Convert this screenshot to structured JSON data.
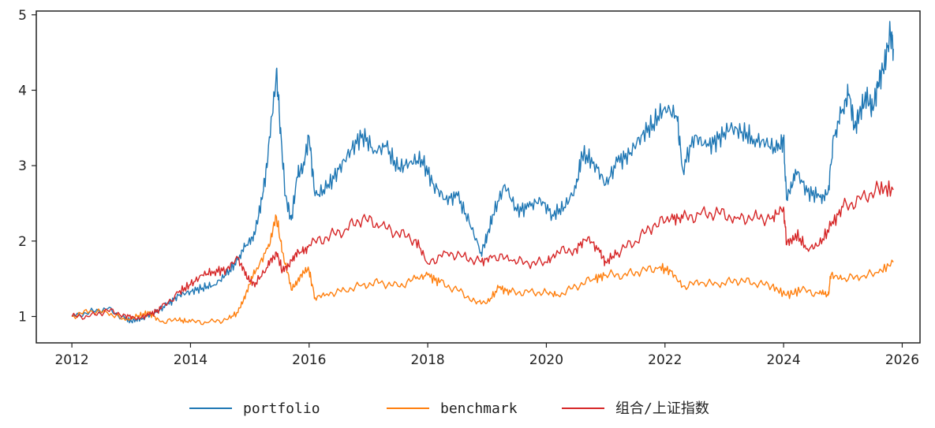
{
  "chart_data": {
    "type": "line",
    "title": "",
    "xlabel": "",
    "ylabel": "",
    "xlim": [
      2011.4,
      2026.3
    ],
    "ylim": [
      0.65,
      5.05
    ],
    "x_ticks": [
      "2012",
      "2014",
      "2016",
      "2018",
      "2020",
      "2022",
      "2024",
      "2026"
    ],
    "y_ticks": [
      "1",
      "2",
      "3",
      "4",
      "5"
    ],
    "grid": false,
    "legend_position": "bottom-center",
    "series": [
      {
        "name": "portfolio",
        "color": "#1f77b4",
        "points": [
          [
            2012.0,
            1.0
          ],
          [
            2012.3,
            1.06
          ],
          [
            2012.6,
            1.1
          ],
          [
            2012.9,
            0.97
          ],
          [
            2013.0,
            0.94
          ],
          [
            2013.2,
            0.98
          ],
          [
            2013.4,
            1.05
          ],
          [
            2013.6,
            1.15
          ],
          [
            2013.8,
            1.28
          ],
          [
            2014.0,
            1.33
          ],
          [
            2014.2,
            1.38
          ],
          [
            2014.4,
            1.42
          ],
          [
            2014.6,
            1.55
          ],
          [
            2014.8,
            1.75
          ],
          [
            2014.95,
            1.95
          ],
          [
            2015.1,
            2.15
          ],
          [
            2015.2,
            2.55
          ],
          [
            2015.3,
            3.05
          ],
          [
            2015.45,
            4.28
          ],
          [
            2015.5,
            3.65
          ],
          [
            2015.6,
            2.6
          ],
          [
            2015.7,
            2.28
          ],
          [
            2015.8,
            2.85
          ],
          [
            2015.9,
            3.0
          ],
          [
            2016.0,
            3.38
          ],
          [
            2016.1,
            2.6
          ],
          [
            2016.3,
            2.7
          ],
          [
            2016.5,
            2.95
          ],
          [
            2016.7,
            3.2
          ],
          [
            2016.9,
            3.42
          ],
          [
            2017.1,
            3.2
          ],
          [
            2017.3,
            3.25
          ],
          [
            2017.5,
            2.95
          ],
          [
            2017.7,
            3.05
          ],
          [
            2017.9,
            3.08
          ],
          [
            2018.1,
            2.75
          ],
          [
            2018.3,
            2.55
          ],
          [
            2018.5,
            2.6
          ],
          [
            2018.7,
            2.25
          ],
          [
            2018.9,
            1.85
          ],
          [
            2019.0,
            2.05
          ],
          [
            2019.1,
            2.35
          ],
          [
            2019.3,
            2.75
          ],
          [
            2019.5,
            2.4
          ],
          [
            2019.7,
            2.45
          ],
          [
            2019.9,
            2.55
          ],
          [
            2020.1,
            2.35
          ],
          [
            2020.3,
            2.45
          ],
          [
            2020.5,
            2.7
          ],
          [
            2020.6,
            3.15
          ],
          [
            2020.8,
            3.05
          ],
          [
            2021.0,
            2.75
          ],
          [
            2021.2,
            3.05
          ],
          [
            2021.4,
            3.15
          ],
          [
            2021.6,
            3.4
          ],
          [
            2021.8,
            3.55
          ],
          [
            2022.0,
            3.78
          ],
          [
            2022.2,
            3.65
          ],
          [
            2022.3,
            2.95
          ],
          [
            2022.5,
            3.4
          ],
          [
            2022.7,
            3.25
          ],
          [
            2022.9,
            3.35
          ],
          [
            2023.1,
            3.5
          ],
          [
            2023.3,
            3.45
          ],
          [
            2023.5,
            3.35
          ],
          [
            2023.7,
            3.3
          ],
          [
            2023.9,
            3.2
          ],
          [
            2024.0,
            3.35
          ],
          [
            2024.05,
            2.55
          ],
          [
            2024.2,
            2.95
          ],
          [
            2024.4,
            2.65
          ],
          [
            2024.6,
            2.6
          ],
          [
            2024.75,
            2.65
          ],
          [
            2024.85,
            3.4
          ],
          [
            2025.0,
            3.75
          ],
          [
            2025.1,
            3.95
          ],
          [
            2025.2,
            3.5
          ],
          [
            2025.3,
            3.75
          ],
          [
            2025.4,
            3.9
          ],
          [
            2025.5,
            3.75
          ],
          [
            2025.6,
            4.1
          ],
          [
            2025.7,
            4.35
          ],
          [
            2025.8,
            4.75
          ],
          [
            2025.85,
            4.55
          ]
        ]
      },
      {
        "name": "benchmark",
        "color": "#ff7f0e",
        "points": [
          [
            2012.0,
            1.0
          ],
          [
            2012.3,
            1.07
          ],
          [
            2012.6,
            1.05
          ],
          [
            2012.9,
            0.95
          ],
          [
            2013.1,
            1.0
          ],
          [
            2013.3,
            1.05
          ],
          [
            2013.5,
            0.93
          ],
          [
            2013.8,
            0.95
          ],
          [
            2014.0,
            0.93
          ],
          [
            2014.3,
            0.92
          ],
          [
            2014.6,
            0.96
          ],
          [
            2014.8,
            1.05
          ],
          [
            2014.95,
            1.35
          ],
          [
            2015.1,
            1.6
          ],
          [
            2015.3,
            1.9
          ],
          [
            2015.45,
            2.32
          ],
          [
            2015.55,
            1.85
          ],
          [
            2015.7,
            1.35
          ],
          [
            2015.85,
            1.55
          ],
          [
            2016.0,
            1.6
          ],
          [
            2016.1,
            1.25
          ],
          [
            2016.3,
            1.3
          ],
          [
            2016.6,
            1.35
          ],
          [
            2016.9,
            1.42
          ],
          [
            2017.2,
            1.45
          ],
          [
            2017.5,
            1.4
          ],
          [
            2017.8,
            1.5
          ],
          [
            2018.0,
            1.55
          ],
          [
            2018.2,
            1.45
          ],
          [
            2018.5,
            1.35
          ],
          [
            2018.8,
            1.2
          ],
          [
            2019.0,
            1.18
          ],
          [
            2019.2,
            1.38
          ],
          [
            2019.4,
            1.32
          ],
          [
            2019.7,
            1.32
          ],
          [
            2020.0,
            1.32
          ],
          [
            2020.2,
            1.28
          ],
          [
            2020.5,
            1.4
          ],
          [
            2020.8,
            1.5
          ],
          [
            2021.0,
            1.55
          ],
          [
            2021.3,
            1.55
          ],
          [
            2021.6,
            1.6
          ],
          [
            2021.9,
            1.65
          ],
          [
            2022.1,
            1.6
          ],
          [
            2022.3,
            1.4
          ],
          [
            2022.6,
            1.45
          ],
          [
            2022.9,
            1.42
          ],
          [
            2023.2,
            1.48
          ],
          [
            2023.5,
            1.45
          ],
          [
            2023.8,
            1.4
          ],
          [
            2024.05,
            1.28
          ],
          [
            2024.3,
            1.35
          ],
          [
            2024.6,
            1.3
          ],
          [
            2024.75,
            1.28
          ],
          [
            2024.8,
            1.55
          ],
          [
            2025.0,
            1.5
          ],
          [
            2025.3,
            1.52
          ],
          [
            2025.6,
            1.58
          ],
          [
            2025.85,
            1.72
          ]
        ]
      },
      {
        "name": "组合/上证指数",
        "color": "#d62728",
        "points": [
          [
            2012.0,
            1.0
          ],
          [
            2012.3,
            1.0
          ],
          [
            2012.6,
            1.08
          ],
          [
            2012.9,
            1.02
          ],
          [
            2013.1,
            0.97
          ],
          [
            2013.3,
            1.02
          ],
          [
            2013.5,
            1.1
          ],
          [
            2013.8,
            1.32
          ],
          [
            2014.0,
            1.42
          ],
          [
            2014.2,
            1.55
          ],
          [
            2014.4,
            1.6
          ],
          [
            2014.6,
            1.62
          ],
          [
            2014.8,
            1.78
          ],
          [
            2014.95,
            1.5
          ],
          [
            2015.1,
            1.45
          ],
          [
            2015.3,
            1.65
          ],
          [
            2015.45,
            1.85
          ],
          [
            2015.55,
            1.6
          ],
          [
            2015.7,
            1.75
          ],
          [
            2015.85,
            1.85
          ],
          [
            2016.0,
            1.95
          ],
          [
            2016.3,
            2.05
          ],
          [
            2016.6,
            2.15
          ],
          [
            2016.9,
            2.3
          ],
          [
            2017.2,
            2.2
          ],
          [
            2017.5,
            2.1
          ],
          [
            2017.8,
            2.02
          ],
          [
            2018.0,
            1.7
          ],
          [
            2018.3,
            1.85
          ],
          [
            2018.6,
            1.8
          ],
          [
            2018.9,
            1.72
          ],
          [
            2019.1,
            1.8
          ],
          [
            2019.4,
            1.75
          ],
          [
            2019.7,
            1.7
          ],
          [
            2020.0,
            1.72
          ],
          [
            2020.2,
            1.85
          ],
          [
            2020.5,
            1.9
          ],
          [
            2020.7,
            2.05
          ],
          [
            2020.9,
            1.85
          ],
          [
            2021.0,
            1.72
          ],
          [
            2021.2,
            1.85
          ],
          [
            2021.5,
            2.0
          ],
          [
            2021.8,
            2.2
          ],
          [
            2022.1,
            2.3
          ],
          [
            2022.3,
            2.3
          ],
          [
            2022.6,
            2.35
          ],
          [
            2022.9,
            2.38
          ],
          [
            2023.2,
            2.3
          ],
          [
            2023.5,
            2.32
          ],
          [
            2023.8,
            2.3
          ],
          [
            2024.0,
            2.45
          ],
          [
            2024.05,
            1.95
          ],
          [
            2024.2,
            2.1
          ],
          [
            2024.4,
            1.9
          ],
          [
            2024.6,
            1.95
          ],
          [
            2024.8,
            2.2
          ],
          [
            2025.0,
            2.45
          ],
          [
            2025.3,
            2.55
          ],
          [
            2025.6,
            2.7
          ],
          [
            2025.85,
            2.68
          ]
        ]
      }
    ]
  }
}
